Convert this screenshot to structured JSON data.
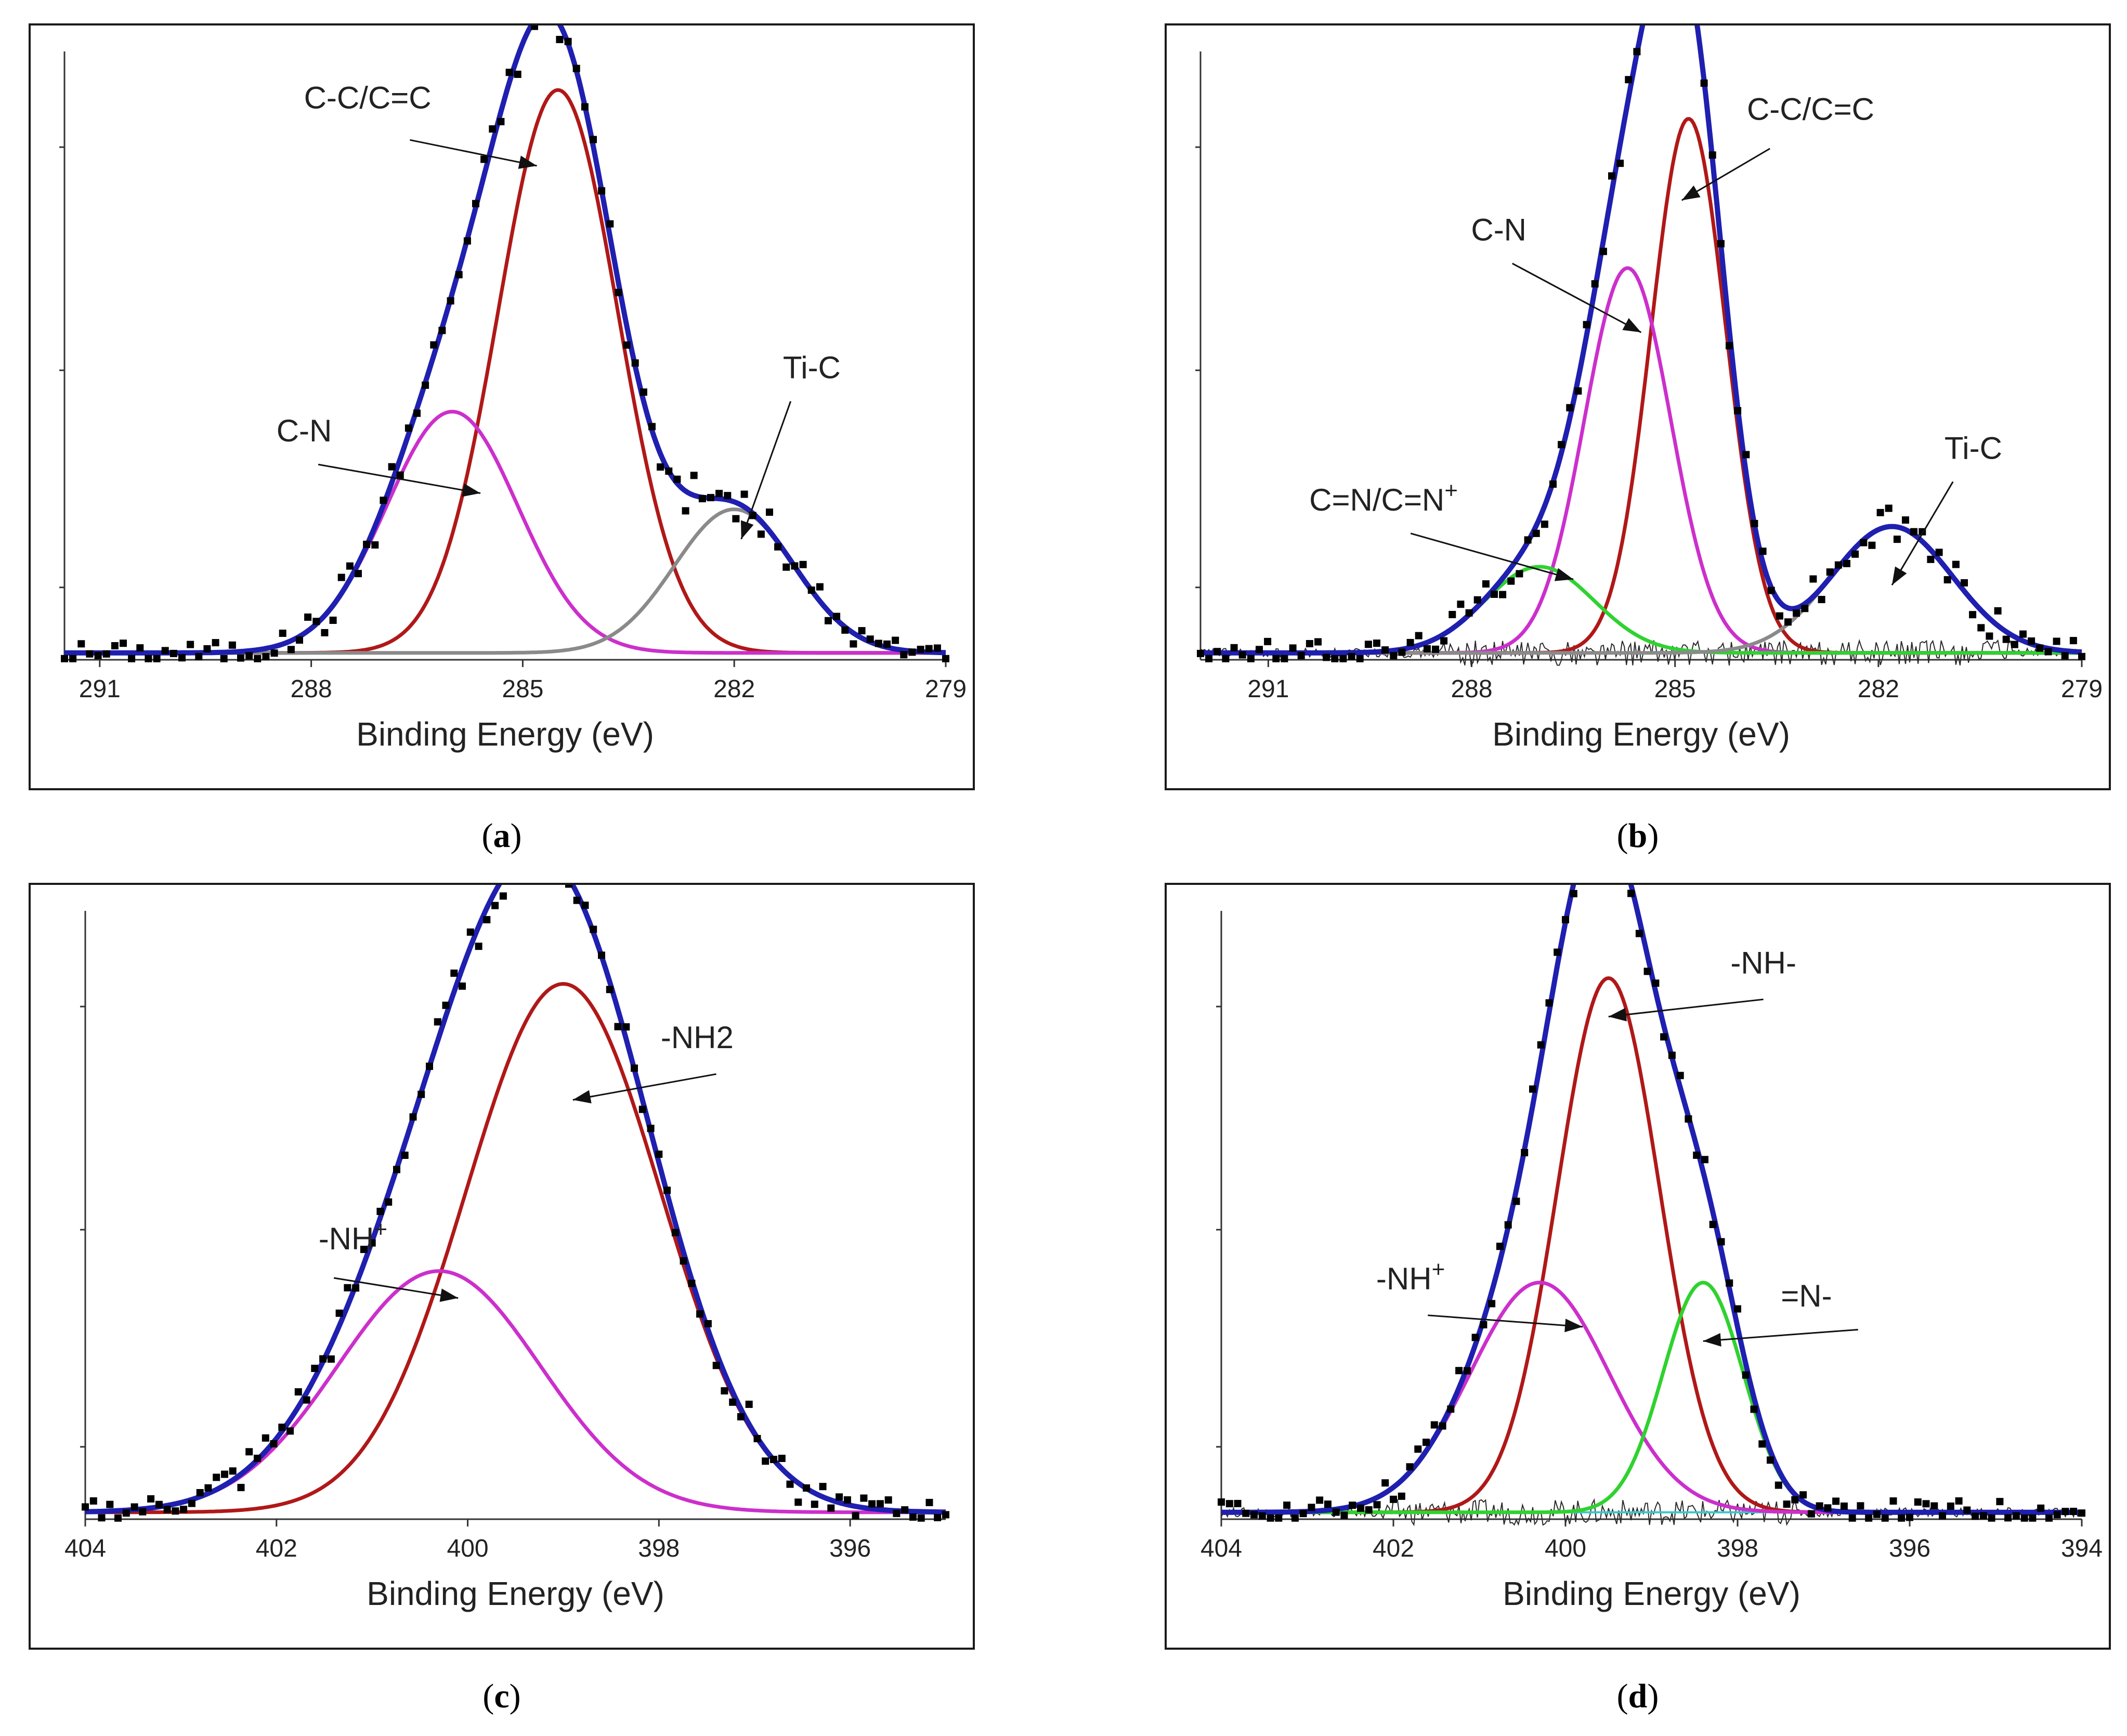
{
  "colors": {
    "envelope": "#1f1fb0",
    "main": "#b01818",
    "cn": "#cc2fcc",
    "tic": "#8a8a8a",
    "green": "#2fd22f",
    "residual": "#2a2a2a",
    "baseline_cyan": "#38c8c8",
    "points": "#000000",
    "arrow": "#111111"
  },
  "chart_data": [
    {
      "id": "a",
      "type": "line",
      "caption_open": "(",
      "caption_letter": "a",
      "caption_close": ")",
      "xlabel": "Binding Energy (eV)",
      "xlim": [
        291.5,
        279
      ],
      "ylim": [
        0,
        105
      ],
      "xticks": [
        291,
        288,
        285,
        282,
        279
      ],
      "xtick_labels": [
        "291",
        "288",
        "285",
        "282",
        "279"
      ],
      "components": [
        {
          "name": "C-C/C=C",
          "center": 284.5,
          "height": 98,
          "fwhm": 2.0,
          "color": "main"
        },
        {
          "name": "C-N",
          "center": 286.0,
          "height": 42,
          "fwhm": 2.2,
          "color": "cn"
        },
        {
          "name": "Ti-C",
          "center": 282.0,
          "height": 25,
          "fwhm": 2.0,
          "color": "tic"
        }
      ],
      "envelope_color": "envelope",
      "annotations": [
        {
          "parts": [
            {
              "t": "C-C/C=C",
              "sup": false
            }
          ],
          "text_at": [
            287.2,
            96
          ],
          "arrow_from": [
            286.6,
            90.5
          ],
          "arrow_to": [
            284.8,
            86
          ]
        },
        {
          "parts": [
            {
              "t": "C-N",
              "sup": false
            }
          ],
          "text_at": [
            288.1,
            38
          ],
          "arrow_from": [
            287.9,
            34
          ],
          "arrow_to": [
            285.6,
            29
          ]
        },
        {
          "parts": [
            {
              "t": "Ti-C",
              "sup": false
            }
          ],
          "text_at": [
            280.9,
            49
          ],
          "arrow_from": [
            281.2,
            45
          ],
          "arrow_to": [
            281.9,
            21
          ]
        }
      ]
    },
    {
      "id": "b",
      "type": "line",
      "caption_open": "(",
      "caption_letter": "b",
      "caption_close": ")",
      "xlabel": "Binding Energy (eV)",
      "xlim": [
        292,
        279
      ],
      "ylim": [
        0,
        105
      ],
      "xticks": [
        291,
        288,
        285,
        282,
        279
      ],
      "xtick_labels": [
        "291",
        "288",
        "285",
        "282",
        "279"
      ],
      "components": [
        {
          "name": "C-C/C=C",
          "center": 284.8,
          "height": 93,
          "fwhm": 1.3,
          "color": "main"
        },
        {
          "name": "C-N",
          "center": 285.7,
          "height": 67,
          "fwhm": 1.5,
          "color": "cn"
        },
        {
          "name": "C=N/C=N+",
          "center": 287.0,
          "height": 15,
          "fwhm": 1.9,
          "color": "green"
        },
        {
          "name": "Ti-C",
          "center": 281.8,
          "height": 22,
          "fwhm": 2.1,
          "color": "tic"
        }
      ],
      "envelope_color": "envelope",
      "annotations": [
        {
          "parts": [
            {
              "t": "C-C/C=C",
              "sup": false
            }
          ],
          "text_at": [
            283.0,
            94
          ],
          "arrow_from": [
            283.6,
            89
          ],
          "arrow_to": [
            284.9,
            80
          ]
        },
        {
          "parts": [
            {
              "t": "C-N",
              "sup": false
            }
          ],
          "text_at": [
            287.6,
            73
          ],
          "arrow_from": [
            287.4,
            69
          ],
          "arrow_to": [
            285.5,
            57
          ]
        },
        {
          "parts": [
            {
              "t": "C=N/C=N",
              "sup": false
            },
            {
              "t": "+",
              "sup": true
            }
          ],
          "text_at": [
            289.3,
            26
          ],
          "arrow_from": [
            288.9,
            22
          ],
          "arrow_to": [
            286.5,
            14
          ]
        },
        {
          "parts": [
            {
              "t": "Ti-C",
              "sup": false
            }
          ],
          "text_at": [
            280.6,
            35
          ],
          "arrow_from": [
            280.9,
            31
          ],
          "arrow_to": [
            281.8,
            13
          ]
        }
      ]
    },
    {
      "id": "c",
      "type": "line",
      "caption_open": "(",
      "caption_letter": "c",
      "caption_close": ")",
      "xlabel": "Binding Energy (eV)",
      "xlim": [
        404,
        395
      ],
      "ylim": [
        0,
        105
      ],
      "xticks": [
        404,
        402,
        400,
        398,
        396
      ],
      "xtick_labels": [
        "404",
        "402",
        "400",
        "398",
        "396"
      ],
      "components": [
        {
          "name": "-NH2",
          "center": 399.0,
          "height": 92,
          "fwhm": 2.4,
          "color": "main"
        },
        {
          "name": "-NH+",
          "center": 400.3,
          "height": 42,
          "fwhm": 2.5,
          "color": "cn"
        }
      ],
      "envelope_color": "envelope",
      "annotations": [
        {
          "parts": [
            {
              "t": "-NH",
              "sup": false
            },
            {
              "t": "2",
              "sup": false
            }
          ],
          "text_at": [
            397.6,
            82
          ],
          "arrow_from": [
            397.4,
            77.5
          ],
          "arrow_to": [
            398.9,
            73
          ]
        },
        {
          "parts": [
            {
              "t": "-NH",
              "sup": false
            },
            {
              "t": "+",
              "sup": true
            }
          ],
          "text_at": [
            401.2,
            47
          ],
          "arrow_from": [
            401.4,
            42
          ],
          "arrow_to": [
            400.1,
            38.5
          ]
        }
      ]
    },
    {
      "id": "d",
      "type": "line",
      "caption_open": "(",
      "caption_letter": "d",
      "caption_close": ")",
      "xlabel": "Binding Energy (eV)",
      "xlim": [
        404,
        394
      ],
      "ylim": [
        0,
        105
      ],
      "xticks": [
        404,
        402,
        400,
        398,
        396,
        394
      ],
      "xtick_labels": [
        "404",
        "402",
        "400",
        "398",
        "396",
        "394"
      ],
      "components": [
        {
          "name": "-NH-",
          "center": 399.5,
          "height": 93,
          "fwhm": 1.4,
          "color": "main"
        },
        {
          "name": "-NH+",
          "center": 400.3,
          "height": 40,
          "fwhm": 1.9,
          "color": "cn"
        },
        {
          "name": "=N-",
          "center": 398.4,
          "height": 40,
          "fwhm": 1.1,
          "color": "green"
        }
      ],
      "envelope_color": "envelope",
      "annotations": [
        {
          "parts": [
            {
              "t": "-NH-",
              "sup": false
            }
          ],
          "text_at": [
            397.7,
            95
          ],
          "arrow_from": [
            397.7,
            90.5
          ],
          "arrow_to": [
            399.5,
            87.5
          ]
        },
        {
          "parts": [
            {
              "t": "-NH",
              "sup": false
            },
            {
              "t": "+",
              "sup": true
            }
          ],
          "text_at": [
            401.8,
            40
          ],
          "arrow_from": [
            401.6,
            35.5
          ],
          "arrow_to": [
            399.8,
            33.5
          ]
        },
        {
          "parts": [
            {
              "t": "=N-",
              "sup": false
            }
          ],
          "text_at": [
            397.2,
            37
          ],
          "arrow_from": [
            396.6,
            33
          ],
          "arrow_to": [
            398.4,
            31
          ]
        }
      ]
    }
  ]
}
